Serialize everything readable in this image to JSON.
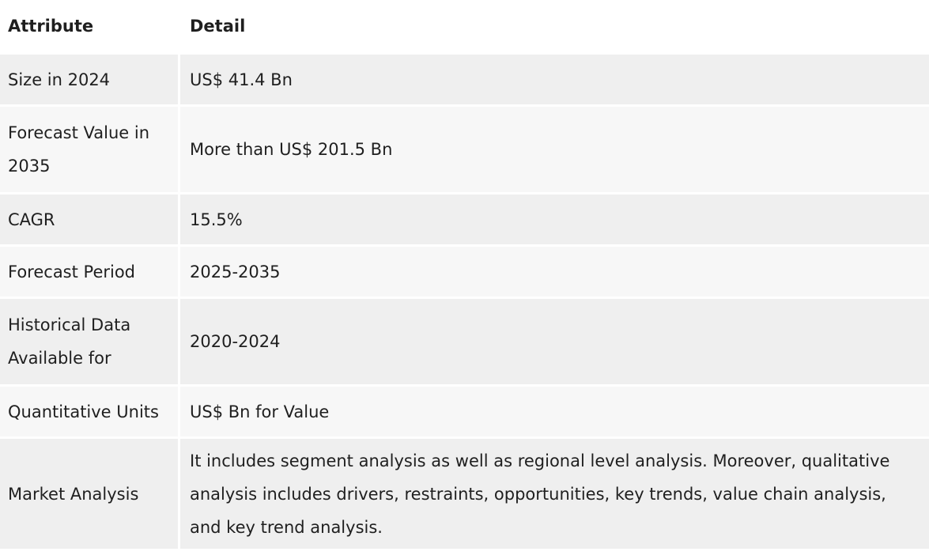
{
  "table": {
    "headers": [
      "Attribute",
      "Detail"
    ],
    "rows": [
      {
        "attribute": "Size in 2024",
        "detail": "US$ 41.4 Bn"
      },
      {
        "attribute": "Forecast Value in 2035",
        "detail": "More than US$ 201.5 Bn"
      },
      {
        "attribute": "CAGR",
        "detail": "15.5%"
      },
      {
        "attribute": "Forecast Period",
        "detail": "2025-2035"
      },
      {
        "attribute": "Historical Data Available for",
        "detail": "2020-2024"
      },
      {
        "attribute": "Quantitative Units",
        "detail": "US$ Bn for Value"
      },
      {
        "attribute": "Market Analysis",
        "detail": "It includes segment analysis as well as regional level analysis. Moreover, qualitative analysis includes drivers, restraints, opportunities, key trends, value chain analysis, and key trend analysis."
      }
    ]
  }
}
